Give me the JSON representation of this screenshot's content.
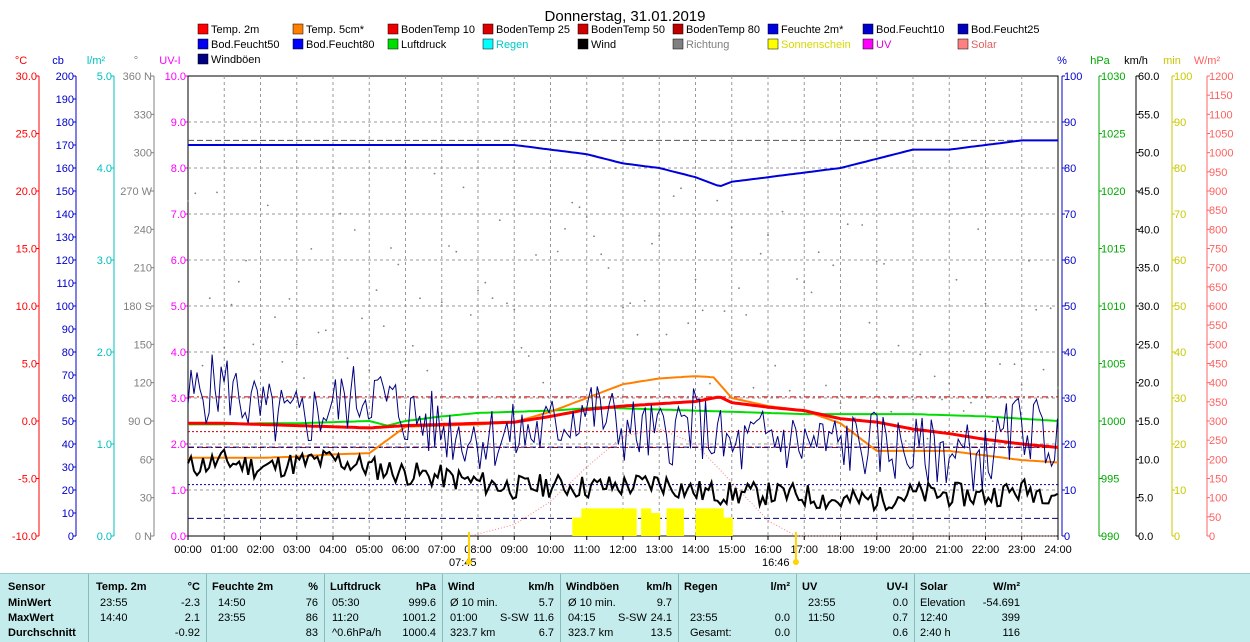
{
  "title": "Donnerstag, 31.01.2019",
  "legend": [
    {
      "label": "Temp. 2m",
      "color": "#ff0000"
    },
    {
      "label": "Temp. 5cm*",
      "color": "#ff8000"
    },
    {
      "label": "BodenTemp 10",
      "color": "#ee0000"
    },
    {
      "label": "BodenTemp 25",
      "color": "#dd0000"
    },
    {
      "label": "BodenTemp 50",
      "color": "#cc0000"
    },
    {
      "label": "BodenTemp 80",
      "color": "#bb0000"
    },
    {
      "label": "Feuchte 2m*",
      "color": "#0000dd"
    },
    {
      "label": "Bod.Feucht10",
      "color": "#0000cc"
    },
    {
      "label": "Bod.Feucht25",
      "color": "#0000bb"
    },
    {
      "label": "Bod.Feucht50",
      "color": "#0000ee"
    },
    {
      "label": "Bod.Feucht80",
      "color": "#0000ff"
    },
    {
      "label": "Luftdruck",
      "color": "#00dd00"
    },
    {
      "label": "Regen",
      "color": "#00ffff"
    },
    {
      "label": "Wind",
      "color": "#000000"
    },
    {
      "label": "Richtung",
      "color": "#808080"
    },
    {
      "label": "Sonnenschein",
      "color": "#ffff00"
    },
    {
      "label": "UV",
      "color": "#ff00ff"
    },
    {
      "label": "Solar",
      "color": "#ff8080"
    },
    {
      "label": "Windböen",
      "color": "#000080"
    }
  ],
  "colors": {
    "temp": "#ff0000",
    "temp5": "#ff8000",
    "humidity": "#0000dd",
    "pressure": "#00dd00",
    "wind": "#000000",
    "gust": "#000080",
    "direction": "#808080",
    "sun": "#ffff00",
    "uv": "#8c8cff",
    "solar": "#ff8080",
    "rain": "#00ffff"
  },
  "chart_data": {
    "type": "line",
    "title": "Donnerstag, 31.01.2019",
    "x_ticks": [
      "00:00",
      "01:00",
      "02:00",
      "03:00",
      "04:00",
      "05:00",
      "06:00",
      "07:00",
      "08:00",
      "09:00",
      "10:00",
      "11:00",
      "12:00",
      "13:00",
      "14:00",
      "15:00",
      "16:00",
      "17:00",
      "18:00",
      "19:00",
      "20:00",
      "21:00",
      "22:00",
      "23:00",
      "24:00"
    ],
    "sunrise": "07:45",
    "sunset": "16:46",
    "axes": [
      {
        "id": "temp",
        "unit": "°C",
        "min": -10,
        "max": 30,
        "ticks": [
          "30.0",
          "25.0",
          "20.0",
          "15.0",
          "10.0",
          "5.0",
          "0.0",
          "-5.0",
          "-10.0"
        ]
      },
      {
        "id": "cb",
        "unit": "cb",
        "min": 0,
        "max": 200,
        "ticks": [
          "200",
          "190",
          "180",
          "170",
          "160",
          "150",
          "140",
          "130",
          "120",
          "110",
          "100",
          "90",
          "80",
          "70",
          "60",
          "50",
          "40",
          "30",
          "20",
          "10",
          "0"
        ]
      },
      {
        "id": "rain",
        "unit": "l/m²",
        "min": 0,
        "max": 5,
        "ticks": [
          "5.0",
          "4.0",
          "3.0",
          "2.0",
          "1.0",
          "0.0"
        ]
      },
      {
        "id": "dir",
        "unit": "°",
        "min": 0,
        "max": 360,
        "ticks": [
          "360 N",
          "330",
          "300",
          "270 W",
          "240",
          "210",
          "180 S",
          "150",
          "120",
          "90 O",
          "60",
          "30",
          "0 N"
        ]
      },
      {
        "id": "uvi",
        "unit": "UV-I",
        "min": 0,
        "max": 10,
        "ticks": [
          "10.0",
          "9.0",
          "8.0",
          "7.0",
          "6.0",
          "5.0",
          "4.0",
          "3.0",
          "2.0",
          "1.0",
          "0.0"
        ]
      },
      {
        "id": "hum",
        "unit": "%",
        "min": 0,
        "max": 100,
        "ticks": [
          "100",
          "90",
          "80",
          "70",
          "60",
          "50",
          "40",
          "30",
          "20",
          "10",
          "0"
        ]
      },
      {
        "id": "hpa",
        "unit": "hPa",
        "min": 990,
        "max": 1030,
        "ticks": [
          "1030",
          "1025",
          "1020",
          "1015",
          "1010",
          "1005",
          "1000",
          "995",
          "990"
        ]
      },
      {
        "id": "kmh",
        "unit": "km/h",
        "min": 0,
        "max": 60,
        "ticks": [
          "60.0",
          "55.0",
          "50.0",
          "45.0",
          "40.0",
          "35.0",
          "30.0",
          "25.0",
          "20.0",
          "15.0",
          "10.0",
          "5.0",
          "0.0"
        ]
      },
      {
        "id": "min",
        "unit": "min",
        "min": 0,
        "max": 100,
        "ticks": [
          "100",
          "90",
          "80",
          "70",
          "60",
          "50",
          "40",
          "30",
          "20",
          "10",
          "0"
        ]
      },
      {
        "id": "wm2",
        "unit": "W/m²",
        "min": 0,
        "max": 1200,
        "ticks": [
          "1200",
          "1150",
          "1100",
          "1050",
          "1000",
          "950",
          "900",
          "850",
          "800",
          "750",
          "700",
          "650",
          "600",
          "550",
          "500",
          "450",
          "400",
          "350",
          "300",
          "250",
          "200",
          "150",
          "100",
          "50",
          "0"
        ]
      }
    ],
    "series": [
      {
        "name": "Temp. 2m",
        "axis": "temp",
        "x": [
          0,
          1,
          2,
          3,
          4,
          5,
          6,
          7,
          8,
          9,
          10,
          11,
          12,
          13,
          14,
          14.67,
          15,
          16,
          17,
          18,
          19,
          20,
          21,
          22,
          23,
          24
        ],
        "values": [
          -0.2,
          -0.2,
          -0.3,
          -0.4,
          -0.5,
          -0.6,
          -0.4,
          -0.3,
          -0.2,
          -0.1,
          0.4,
          1.0,
          1.3,
          1.5,
          1.7,
          2.1,
          1.6,
          1.2,
          0.9,
          0.2,
          -0.1,
          -0.7,
          -1.1,
          -1.6,
          -2.0,
          -2.3
        ]
      },
      {
        "name": "Temp. 5cm*",
        "axis": "temp",
        "x": [
          0,
          1,
          2,
          3,
          4,
          5,
          6,
          7,
          8,
          9,
          10,
          11,
          12,
          13,
          13.5,
          14,
          14.5,
          15,
          16,
          17,
          18,
          19,
          20,
          21,
          22,
          23,
          24
        ],
        "values": [
          -3.2,
          -3.2,
          -3.2,
          -3.1,
          -2.9,
          -2.8,
          -0.5,
          -0.4,
          -0.3,
          -0.1,
          0.8,
          2.0,
          3.2,
          3.7,
          3.8,
          3.9,
          3.8,
          2.0,
          1.3,
          0.9,
          -0.2,
          -2.6,
          -2.6,
          -2.6,
          -3.0,
          -3.4,
          -3.6
        ]
      },
      {
        "name": "Feuchte 2m*",
        "axis": "hum",
        "x": [
          0,
          1,
          2,
          3,
          4,
          5,
          6,
          7,
          8,
          9,
          10,
          11,
          12,
          13,
          14,
          14.67,
          15,
          16,
          17,
          18,
          19,
          20,
          21,
          22,
          23,
          24
        ],
        "values": [
          85,
          85,
          85,
          85,
          85,
          85,
          85,
          85,
          85,
          85,
          84,
          83,
          81,
          80,
          78,
          76,
          77,
          78,
          79,
          80,
          82,
          84,
          84,
          85,
          86,
          86
        ]
      },
      {
        "name": "Luftdruck",
        "axis": "hpa",
        "x": [
          0,
          1,
          2,
          3,
          4,
          5,
          5.5,
          6,
          7,
          8,
          9,
          10,
          11,
          11.33,
          12,
          13,
          14,
          15,
          16,
          17,
          18,
          19,
          20,
          21,
          22,
          23,
          24
        ],
        "values": [
          999.7,
          999.7,
          999.8,
          999.8,
          999.9,
          1000.0,
          999.6,
          1000.0,
          1000.4,
          1000.7,
          1000.8,
          1000.9,
          1001.1,
          1001.2,
          1001.1,
          1001.0,
          1000.9,
          1000.8,
          1000.7,
          1000.6,
          1000.6,
          1000.6,
          1000.6,
          1000.5,
          1000.4,
          1000.2,
          1000.0
        ]
      },
      {
        "name": "Wind",
        "axis": "kmh",
        "x": [
          0,
          1,
          2,
          3,
          4,
          5,
          6,
          7,
          8,
          9,
          10,
          11,
          12,
          13,
          14,
          15,
          16,
          17,
          18,
          19,
          20,
          21,
          22,
          23,
          24
        ],
        "values": [
          9.0,
          9.8,
          8.9,
          9.5,
          10.0,
          9.0,
          8.2,
          7.7,
          7.0,
          6.3,
          6.6,
          6.4,
          6.5,
          7.0,
          5.8,
          5.5,
          5.5,
          5.3,
          4.5,
          4.8,
          5.5,
          5.4,
          5.2,
          6.0,
          5.7
        ]
      },
      {
        "name": "Windböen",
        "axis": "kmh",
        "x": [
          0,
          1,
          2,
          3,
          4,
          5,
          6,
          7,
          8,
          9,
          10,
          11,
          12,
          13,
          14,
          15,
          16,
          17,
          18,
          19,
          20,
          21,
          22,
          23,
          24
        ],
        "values": [
          18,
          20,
          16,
          15,
          17,
          19,
          16,
          14,
          13,
          13,
          14,
          17,
          14,
          13,
          15,
          11,
          13,
          12,
          12,
          12,
          11,
          11,
          10,
          15,
          12
        ]
      },
      {
        "name": "Richtung",
        "axis": "dir",
        "x": [
          0,
          1,
          2,
          3,
          4,
          5,
          6,
          7,
          8,
          9,
          10,
          11,
          12,
          13,
          14,
          15,
          16,
          17,
          18,
          19,
          20,
          21,
          22,
          23,
          24
        ],
        "values": [
          200,
          205,
          190,
          185,
          195,
          180,
          200,
          205,
          210,
          195,
          185,
          200,
          215,
          205,
          195,
          190,
          180,
          175,
          165,
          170,
          150,
          160,
          170,
          140,
          150
        ]
      },
      {
        "name": "Solar",
        "axis": "wm2",
        "x": [
          7.75,
          8,
          9,
          10,
          11,
          12,
          13,
          14,
          15,
          16,
          16.77
        ],
        "values": [
          0,
          5,
          30,
          90,
          180,
          260,
          280,
          240,
          140,
          40,
          0
        ]
      },
      {
        "name": "Sonnenschein",
        "axis": "min",
        "type": "bar",
        "x": [
          10.6,
          10.85,
          11.0,
          11.25,
          11.5,
          11.75,
          12.0,
          12.1,
          12.5,
          12.75,
          13.2,
          13.4,
          14.0,
          14.25,
          14.5,
          14.75
        ],
        "values": [
          4,
          6,
          6,
          6,
          6,
          6,
          6,
          6,
          6,
          5,
          6,
          6,
          6,
          6,
          6,
          4
        ]
      }
    ]
  },
  "stats": {
    "headers": {
      "sensor": "Sensor",
      "temp": "Temp. 2m",
      "temp_unit": "°C",
      "hum": "Feuchte 2m",
      "hum_unit": "%",
      "pres": "Luftdruck",
      "pres_unit": "hPa",
      "wind": "Wind",
      "wind_unit": "km/h",
      "gust": "Windböen",
      "gust_unit": "km/h",
      "rain": "Regen",
      "rain_unit": "l/m²",
      "uv": "UV",
      "uv_unit": "UV-I",
      "solar": "Solar",
      "solar_unit": "W/m²"
    },
    "rows": [
      {
        "label": "MinWert",
        "temp_t": "23:55",
        "temp_v": "-2.3",
        "hum_t": "14:50",
        "hum_v": "76",
        "pres_t": "05:30",
        "pres_v": "999.6",
        "wind_a": "Ø 10 min.",
        "wind_b": "",
        "wind_v": "5.7",
        "gust_a": "Ø 10 min.",
        "gust_b": "",
        "gust_v": "9.7",
        "rain_t": "",
        "rain_v": "",
        "uv_t": "23:55",
        "uv_v": "0.0",
        "solar_t": "Elevation",
        "solar_v": "-54.691"
      },
      {
        "label": "MaxWert",
        "temp_t": "14:40",
        "temp_v": "2.1",
        "hum_t": "23:55",
        "hum_v": "86",
        "pres_t": "11:20",
        "pres_v": "1001.2",
        "wind_a": "01:00",
        "wind_b": "S-SW",
        "wind_v": "11.6",
        "gust_a": "04:15",
        "gust_b": "S-SW",
        "gust_v": "24.1",
        "rain_t": "23:55",
        "rain_v": "0.0",
        "uv_t": "11:50",
        "uv_v": "0.7",
        "solar_t": "12:40",
        "solar_v": "399"
      },
      {
        "label": "Durchschnitt",
        "temp_t": "",
        "temp_v": "-0.92",
        "hum_t": "",
        "hum_v": "83",
        "pres_t": "^0.6hPa/h",
        "pres_v": "1000.4",
        "wind_a": "323.7 km",
        "wind_b": "",
        "wind_v": "6.7",
        "gust_a": "323.7 km",
        "gust_b": "",
        "gust_v": "13.5",
        "rain_t": "Gesamt:",
        "rain_v": "0.0",
        "uv_t": "",
        "uv_v": "0.6",
        "solar_t": "2:40 h",
        "solar_v": "116"
      }
    ]
  }
}
